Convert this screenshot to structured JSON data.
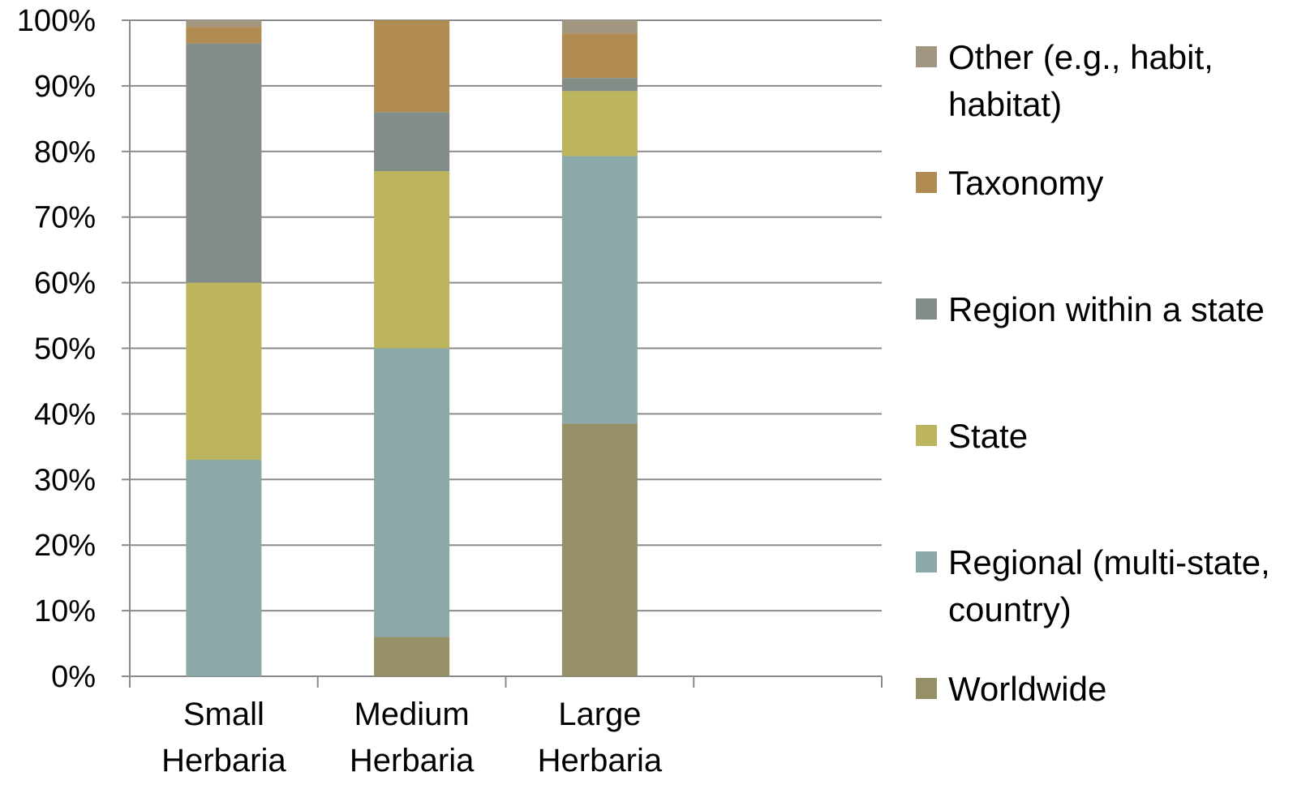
{
  "chart_data": {
    "type": "bar",
    "stacked": true,
    "percent": true,
    "categories": [
      "Small Herbaria",
      "Medium Herbaria",
      "Large Herbaria"
    ],
    "category_lines": [
      [
        "Small",
        "Herbaria"
      ],
      [
        "Medium",
        "Herbaria"
      ],
      [
        "Large",
        "Herbaria"
      ]
    ],
    "series": [
      {
        "name": "Worldwide",
        "color": "#969068",
        "values": [
          0,
          6,
          38.5
        ]
      },
      {
        "name": "Regional (multi-state, country)",
        "legend_lines": [
          "Regional (multi-state,",
          "country)"
        ],
        "color": "#8ba9a8",
        "values": [
          33,
          44,
          40.8
        ]
      },
      {
        "name": "State",
        "color": "#bcb55e",
        "values": [
          27,
          27,
          9.9
        ]
      },
      {
        "name": "Region within a state",
        "color": "#838d87",
        "values": [
          36.5,
          9,
          2
        ]
      },
      {
        "name": "Taxonomy",
        "color": "#b08c53",
        "values": [
          2.5,
          14,
          6.8
        ]
      },
      {
        "name": "Other (e.g., habit, habitat)",
        "legend_lines": [
          "Other (e.g., habit,",
          "habitat)"
        ],
        "color": "#a39681",
        "values": [
          1,
          0,
          2
        ]
      }
    ],
    "ylim": [
      0,
      100
    ],
    "yticks": [
      "0%",
      "10%",
      "20%",
      "30%",
      "40%",
      "50%",
      "60%",
      "70%",
      "80%",
      "90%",
      "100%"
    ],
    "grid": true,
    "legend_position": "right",
    "legend_order": [
      "Other (e.g., habit, habitat)",
      "Taxonomy",
      "Region within a state",
      "State",
      "Regional (multi-state, country)",
      "Worldwide"
    ],
    "empty_slots": 1,
    "title": "",
    "xlabel": "",
    "ylabel": ""
  }
}
